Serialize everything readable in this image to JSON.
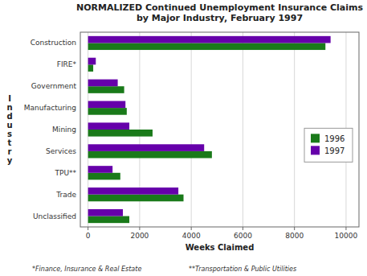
{
  "chart_data": {
    "type": "bar",
    "orientation": "horizontal",
    "title": "NORMALIZED Continued Unemployment Insurance Claims\nby Major Industry, February 1997",
    "xlabel": "Weeks Claimed",
    "ylabel": "I\nn\nd\nu\ns\nt\nr\ny",
    "categories": [
      "Construction",
      "FIRE*",
      "Government",
      "Manufacturing",
      "Mining",
      "Services",
      "TPU**",
      "Trade",
      "Unclassified"
    ],
    "series": [
      {
        "name": "1996",
        "color": "#1a7a1a",
        "values": [
          9200,
          200,
          1400,
          1500,
          2500,
          4800,
          1250,
          3700,
          1600
        ]
      },
      {
        "name": "1997",
        "color": "#6600aa",
        "values": [
          9400,
          300,
          1150,
          1450,
          1600,
          4500,
          950,
          3500,
          1350
        ]
      }
    ],
    "xlim": [
      -300,
      10500
    ],
    "xticks": [
      0,
      2000,
      4000,
      6000,
      8000,
      10000
    ],
    "grid": true,
    "legend": "right",
    "annotations": [
      "*Finance, Insurance & Real Estate",
      "**Transportation & Public Utilities"
    ]
  }
}
